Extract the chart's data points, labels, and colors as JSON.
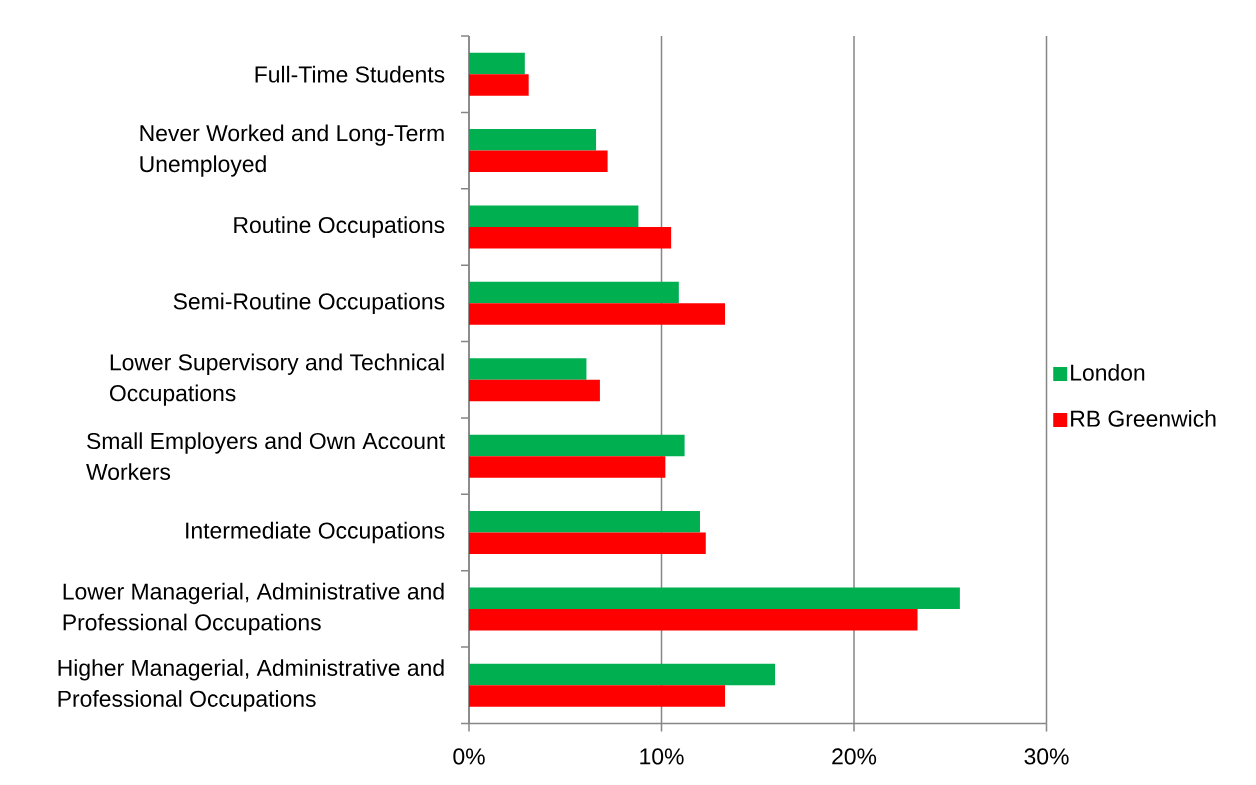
{
  "chart_data": {
    "type": "bar",
    "orientation": "horizontal",
    "categories": [
      "Full-Time Students",
      "Never Worked and Long-Term Unemployed",
      "Routine Occupations",
      "Semi-Routine Occupations",
      "Lower Supervisory and Technical Occupations",
      "Small Employers and Own Account Workers",
      "Intermediate Occupations",
      "Lower Managerial, Administrative and Professional Occupations",
      "Higher Managerial, Administrative and Professional Occupations"
    ],
    "series": [
      {
        "name": "London",
        "color": "#00b050",
        "values": [
          2.9,
          6.6,
          8.8,
          10.9,
          6.1,
          11.2,
          12.0,
          25.5,
          15.9
        ]
      },
      {
        "name": "RB Greenwich",
        "color": "#ff0000",
        "values": [
          3.1,
          7.2,
          10.5,
          13.3,
          6.8,
          10.2,
          12.3,
          23.3,
          13.3
        ]
      }
    ],
    "xlim": [
      0,
      30
    ],
    "xticks": [
      {
        "value": 0,
        "label": "0%"
      },
      {
        "value": 10,
        "label": "10%"
      },
      {
        "value": 20,
        "label": "20%"
      },
      {
        "value": 30,
        "label": "30%"
      }
    ],
    "grid": "x",
    "legend": "right"
  }
}
